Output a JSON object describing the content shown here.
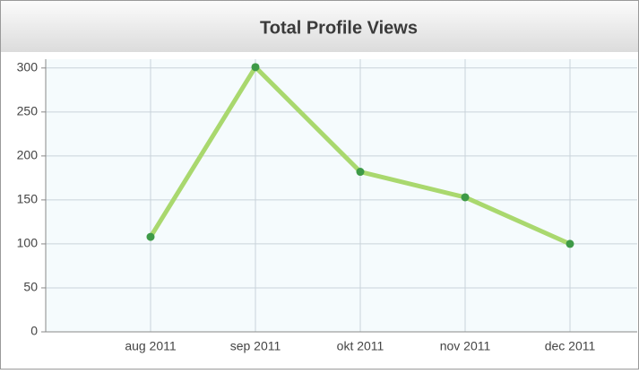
{
  "chart_data": {
    "type": "line",
    "title": "Total Profile Views",
    "categories": [
      "aug 2011",
      "sep 2011",
      "okt 2011",
      "nov 2011",
      "dec 2011"
    ],
    "values": [
      108,
      301,
      182,
      153,
      100
    ],
    "color": "#a9d86e",
    "marker_color": "#3e9a47",
    "ylim": [
      0,
      310
    ],
    "yticks": [
      0,
      50,
      100,
      150,
      200,
      250,
      300
    ],
    "grid": true
  }
}
